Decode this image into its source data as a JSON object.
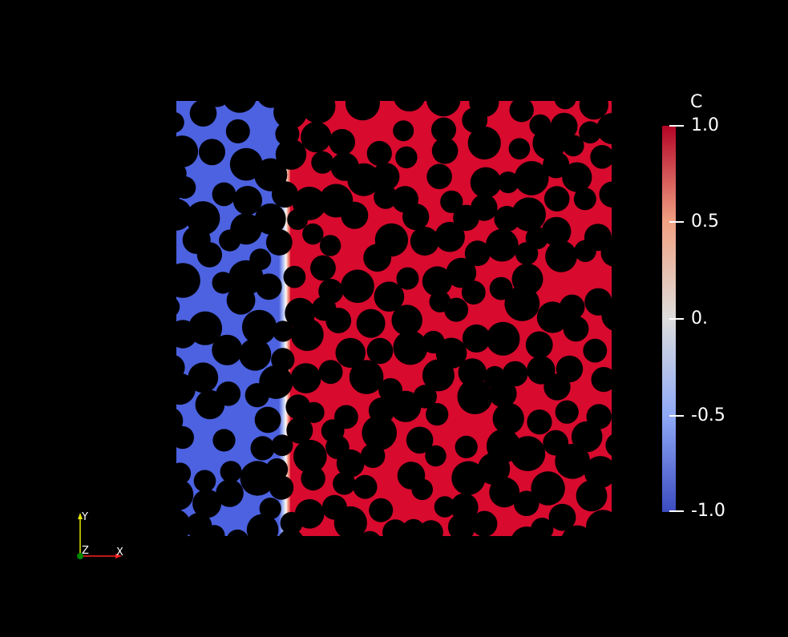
{
  "colorbar": {
    "title": "C",
    "ticks": [
      "1.0",
      "0.5",
      "0.",
      "-0.5",
      "-1.0"
    ],
    "tick_values": [
      1.0,
      0.5,
      0.0,
      -0.5,
      -1.0
    ],
    "range": [
      -1.0,
      1.0
    ],
    "colormap": "Cool to Warm",
    "colors": {
      "low": "#3b4cc0",
      "mid": "#dddddd",
      "high": "#b40426"
    }
  },
  "field": {
    "left_phase_color": "#4c62e0",
    "right_phase_color": "#d80a2e",
    "obstacle_color": "#000000"
  },
  "orientation_axes": {
    "labels": {
      "x": "X",
      "y": "Y",
      "z": "Z"
    },
    "colors": {
      "x": "#ff2020",
      "y": "#e8e800",
      "z": "#008800"
    }
  }
}
